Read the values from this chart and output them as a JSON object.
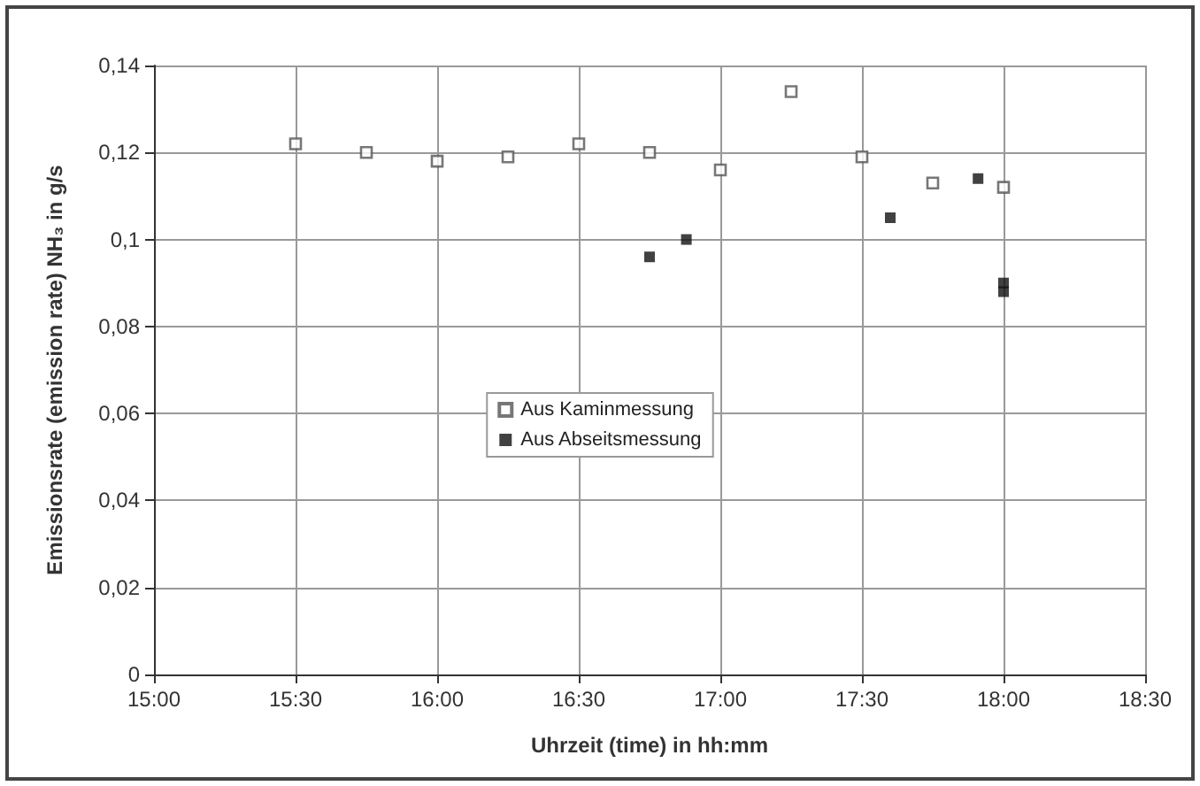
{
  "chart_data": {
    "type": "scatter",
    "xlabel": "Uhrzeit (time) in hh:mm",
    "ylabel": "Emissionsrate (emission rate) NH₃ in g/s",
    "xlim": [
      15,
      18.5
    ],
    "xticks": [
      {
        "value": 15,
        "label": "15:00"
      },
      {
        "value": 15.5,
        "label": "15:30"
      },
      {
        "value": 16,
        "label": "16:00"
      },
      {
        "value": 16.5,
        "label": "16:30"
      },
      {
        "value": 17,
        "label": "17:00"
      },
      {
        "value": 17.5,
        "label": "17:30"
      },
      {
        "value": 18,
        "label": "18:00"
      },
      {
        "value": 18.5,
        "label": "18:30"
      }
    ],
    "ylim": [
      0,
      0.14
    ],
    "yticks": [
      0,
      {
        "value": 0.02,
        "label": "0,02"
      },
      {
        "value": 0.04,
        "label": "0,04"
      },
      {
        "value": 0.06,
        "label": "0,06"
      },
      {
        "value": 0.08,
        "label": "0,08"
      },
      {
        "value": 0.1,
        "label": "0,1"
      },
      {
        "value": 0.12,
        "label": "0,12"
      },
      {
        "value": 0.14,
        "label": "0,14"
      }
    ],
    "grid": true,
    "legend": "center",
    "marker": "square",
    "series": [
      {
        "name": "Aus Kaminmessung",
        "color": "#555555",
        "x": [
          15.5,
          15.75,
          16,
          16.25,
          16.5,
          16.75,
          17,
          17.25,
          17.5,
          17.75,
          18
        ],
        "values": [
          0.122,
          0.12,
          0.118,
          0.119,
          0.122,
          0.12,
          0.116,
          0.134,
          0.119,
          0.113,
          0.112
        ]
      },
      {
        "name": "Aus Abseitsmessung",
        "color": "#111111",
        "x": [
          16.75,
          16.88,
          17.6,
          17.91,
          18,
          18
        ],
        "values": [
          0.096,
          0.1,
          0.105,
          0.114,
          0.09,
          0.088
        ]
      }
    ]
  }
}
